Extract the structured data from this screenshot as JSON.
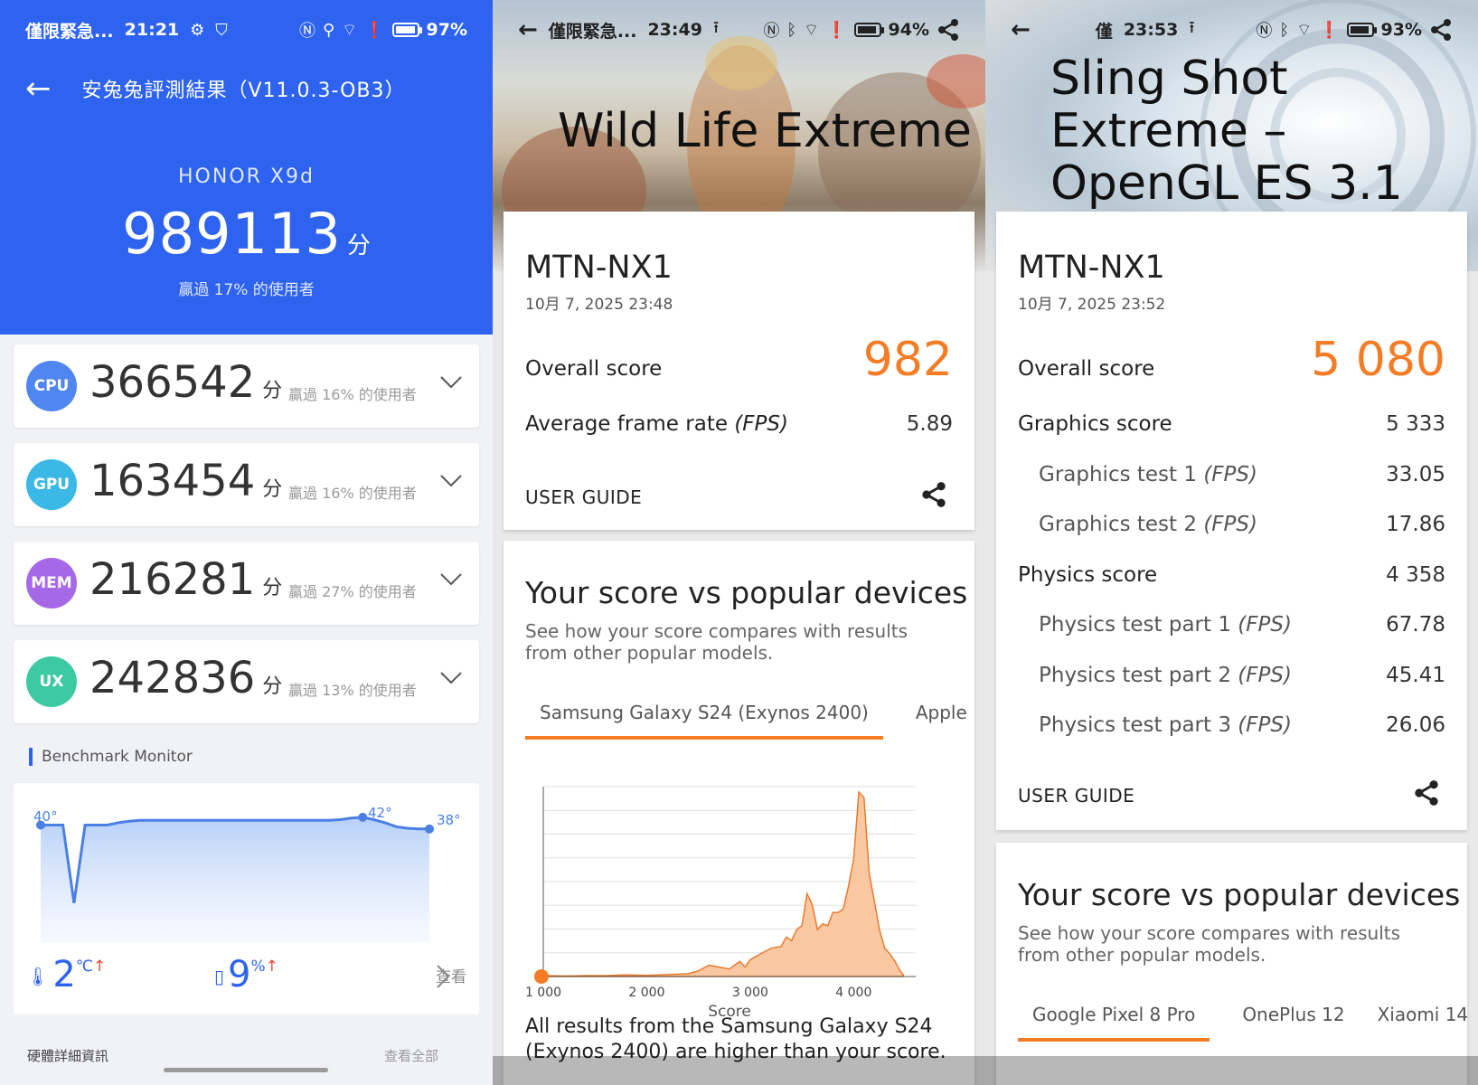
{
  "panel1": {
    "status": {
      "left": "僅限緊急...",
      "time": "21:21",
      "battery": "97%",
      "battery_fill": 0.97
    },
    "title": "安兔兔評測結果（V11.0.3-OB3）",
    "device": "HONOR X9d",
    "total_score": "989113",
    "score_unit": "分",
    "total_rank": "贏過 17% 的使用者",
    "categories": [
      {
        "badge": "CPU",
        "score": "366542",
        "unit": "分",
        "rank": "贏過 16% 的使用者",
        "color": "#4f86f0"
      },
      {
        "badge": "GPU",
        "score": "163454",
        "unit": "分",
        "rank": "贏過 16% 的使用者",
        "color": "#3bb8e6"
      },
      {
        "badge": "MEM",
        "score": "216281",
        "unit": "分",
        "rank": "贏過 27% 的使用者",
        "color": "#a569e8"
      },
      {
        "badge": "UX",
        "score": "242836",
        "unit": "分",
        "rank": "贏過 13% 的使用者",
        "color": "#3cc9a4"
      }
    ],
    "monitor": {
      "label": "Benchmark Monitor",
      "temp_start": "40°",
      "temp_peak": "42°",
      "temp_end": "38°",
      "temp_delta": "2",
      "temp_unit": "℃",
      "battery_delta": "9",
      "battery_unit": "%",
      "view_label": "查看",
      "curve": [
        40,
        40,
        40,
        30,
        40,
        40,
        40,
        40.3,
        40.5,
        40.6,
        40.6,
        40.6,
        40.6,
        40.6,
        40.6,
        40.6,
        40.6,
        40.6,
        40.6,
        40.6,
        40.6,
        40.6,
        40.6,
        40.6,
        40.6,
        40.6,
        40.6,
        40.7,
        40.9,
        41,
        40.7,
        40.3,
        39.8,
        39.6,
        39.5,
        39.5
      ]
    },
    "more_left": "硬體詳細資訊",
    "more_right": "查看全部"
  },
  "panel2": {
    "status": {
      "left": "僅限緊急...",
      "time": "23:49",
      "battery": "94%",
      "battery_fill": 0.94
    },
    "hero_title": "Wild Life Extreme",
    "device": "MTN-NX1",
    "date": "10月 7, 2025 23:48",
    "overall_label": "Overall score",
    "overall_value": "982",
    "fps_label": "Average frame rate",
    "fps_unit": "(FPS)",
    "fps_value": "5.89",
    "user_guide": "USER GUIDE",
    "vs_title": "Your score vs popular devices",
    "vs_sub": "See how your score compares with results from other popular models.",
    "tabs": [
      "Samsung Galaxy S24 (Exynos 2400)",
      "Apple iF"
    ],
    "note": "All results from the Samsung Galaxy S24 (Exynos 2400) are higher than your score.",
    "accent": "#f47c24"
  },
  "panel3": {
    "status": {
      "left": "僅",
      "time": "23:53",
      "battery": "93%",
      "battery_fill": 0.93
    },
    "hero_title_lines": [
      "Sling Shot",
      "Extreme –",
      "OpenGL ES 3.1"
    ],
    "device": "MTN-NX1",
    "date": "10月 7, 2025 23:52",
    "overall_label": "Overall score",
    "overall_value": "5 080",
    "rows": [
      {
        "label": "Graphics score",
        "unit": "",
        "value": "5 333",
        "sub": false
      },
      {
        "label": "Graphics test 1",
        "unit": "(FPS)",
        "value": "33.05",
        "sub": true
      },
      {
        "label": "Graphics test 2",
        "unit": "(FPS)",
        "value": "17.86",
        "sub": true
      },
      {
        "label": "Physics score",
        "unit": "",
        "value": "4 358",
        "sub": false
      },
      {
        "label": "Physics test part 1",
        "unit": "(FPS)",
        "value": "67.78",
        "sub": true
      },
      {
        "label": "Physics test part 2",
        "unit": "(FPS)",
        "value": "45.41",
        "sub": true
      },
      {
        "label": "Physics test part 3",
        "unit": "(FPS)",
        "value": "26.06",
        "sub": true
      }
    ],
    "user_guide": "USER GUIDE",
    "vs_title": "Your score vs popular devices",
    "vs_sub": "See how your score compares with results from other popular models.",
    "tabs": [
      "Google Pixel 8 Pro",
      "OnePlus 12",
      "Xiaomi 14"
    ]
  },
  "chart_data": {
    "type": "area",
    "xlabel": "Score",
    "x_ticks": [
      "1 000",
      "2 000",
      "3 000",
      "4 000"
    ],
    "xlim": [
      1000,
      4600
    ],
    "your_score": 982,
    "x": [
      1000,
      1200,
      1400,
      1600,
      1800,
      2000,
      2200,
      2400,
      2500,
      2600,
      2700,
      2800,
      2900,
      2950,
      3000,
      3100,
      3200,
      3300,
      3350,
      3400,
      3450,
      3500,
      3550,
      3600,
      3650,
      3700,
      3750,
      3800,
      3850,
      3900,
      3950,
      4000,
      4050,
      4100,
      4150,
      4200,
      4250,
      4300,
      4350,
      4400,
      4450,
      4480
    ],
    "values": [
      0.5,
      0.3,
      0.5,
      0.5,
      0.8,
      0.6,
      1,
      1.5,
      3,
      6,
      5,
      4,
      8,
      5,
      9,
      12,
      15,
      16,
      21,
      19,
      25,
      27,
      44,
      38,
      25,
      28,
      27,
      34,
      34,
      36,
      48,
      62,
      98,
      95,
      55,
      40,
      25,
      15,
      12,
      8,
      3,
      1
    ]
  }
}
